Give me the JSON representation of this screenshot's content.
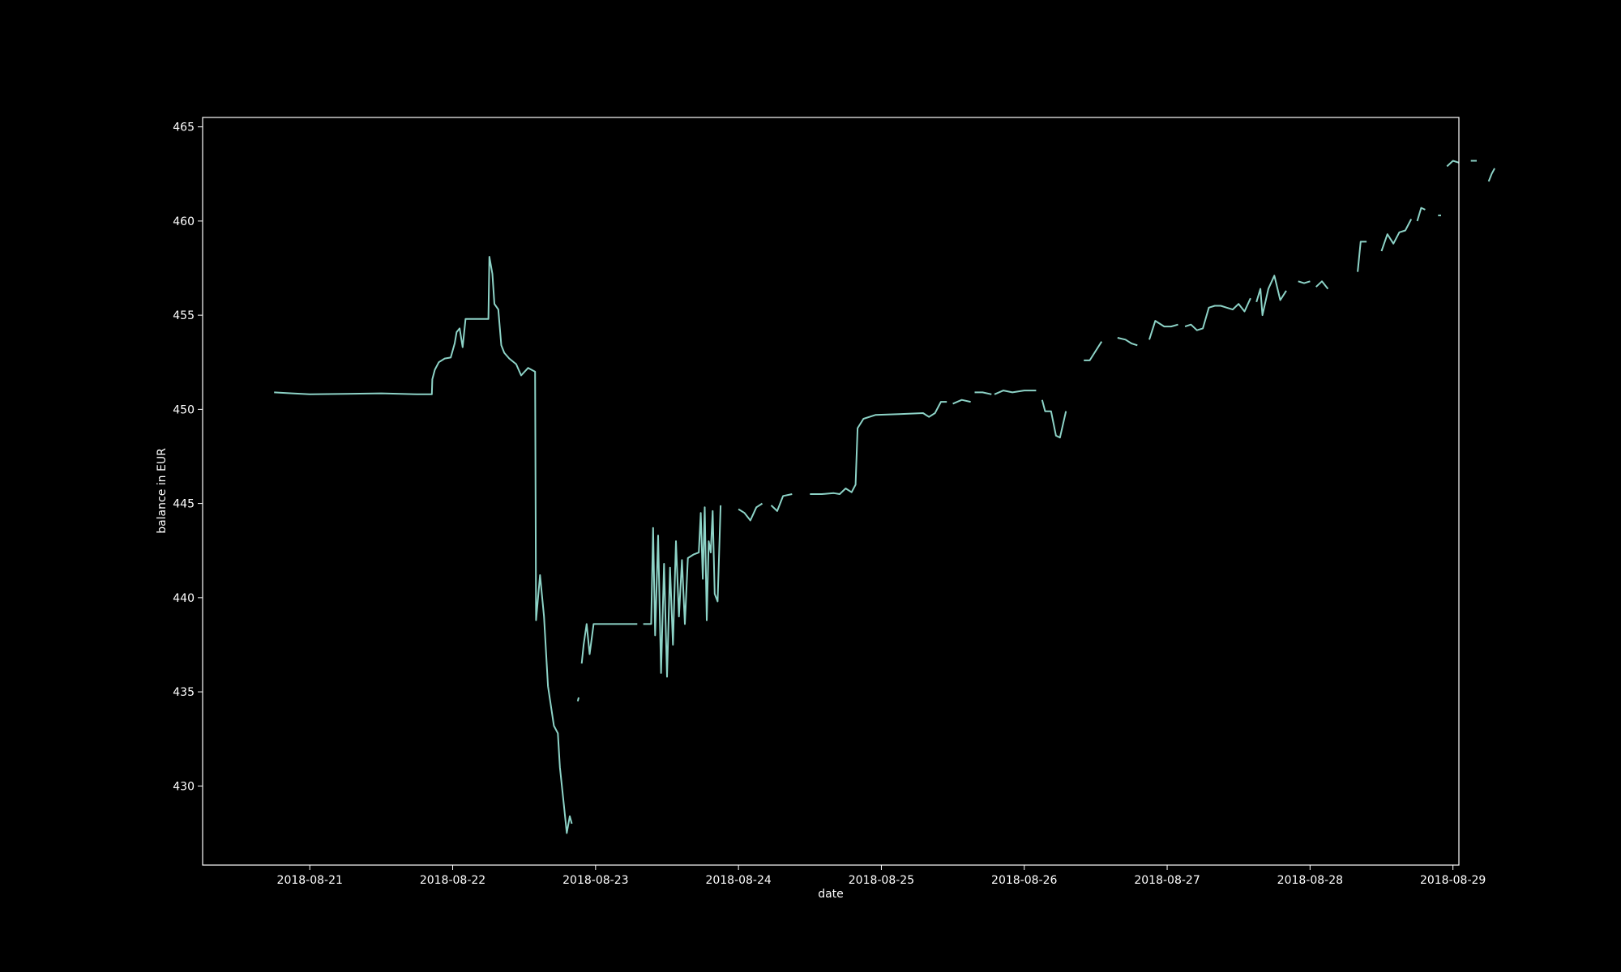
{
  "chart_data": {
    "type": "line",
    "title": "",
    "xlabel": "date",
    "ylabel": "balance in EUR",
    "xlim": [
      "2018-08-20T06:00",
      "2018-08-29T01:00"
    ],
    "ylim": [
      425.8,
      465.5
    ],
    "x_ticks": [
      "2018-08-21",
      "2018-08-22",
      "2018-08-23",
      "2018-08-24",
      "2018-08-25",
      "2018-08-26",
      "2018-08-27",
      "2018-08-28",
      "2018-08-29"
    ],
    "y_ticks": [
      430,
      435,
      440,
      445,
      450,
      455,
      460,
      465
    ],
    "grid": false,
    "legend": false,
    "colors": {
      "background": "#000000",
      "axes": "#ffffff",
      "line": "#8dd3c7"
    },
    "series": [
      {
        "segments": [
          [
            [
              "2018-08-20T18:00",
              450.9
            ],
            [
              "2018-08-20T21:00",
              450.85
            ],
            [
              "2018-08-21T00:00",
              450.8
            ],
            [
              "2018-08-21T06:00",
              450.82
            ],
            [
              "2018-08-21T12:00",
              450.85
            ],
            [
              "2018-08-21T18:00",
              450.8
            ],
            [
              "2018-08-21T20:30",
              450.8
            ],
            [
              "2018-08-21T20:35",
              451.6
            ],
            [
              "2018-08-21T21:00",
              452.1
            ],
            [
              "2018-08-21T21:40",
              452.5
            ],
            [
              "2018-08-21T22:40",
              452.7
            ],
            [
              "2018-08-21T23:40",
              452.75
            ],
            [
              "2018-08-22T00:20",
              453.5
            ],
            [
              "2018-08-22T00:40",
              454.1
            ],
            [
              "2018-08-22T01:10",
              454.3
            ],
            [
              "2018-08-22T01:40",
              453.3
            ],
            [
              "2018-08-22T02:10",
              454.8
            ],
            [
              "2018-08-22T03:30",
              454.8
            ],
            [
              "2018-08-22T05:30",
              454.8
            ],
            [
              "2018-08-22T06:00",
              454.8
            ],
            [
              "2018-08-22T06:10",
              458.1
            ],
            [
              "2018-08-22T06:40",
              457.2
            ],
            [
              "2018-08-22T07:00",
              455.6
            ],
            [
              "2018-08-22T07:40",
              455.3
            ],
            [
              "2018-08-22T08:10",
              453.4
            ],
            [
              "2018-08-22T08:40",
              453.0
            ],
            [
              "2018-08-22T09:30",
              452.7
            ],
            [
              "2018-08-22T10:40",
              452.4
            ],
            [
              "2018-08-22T11:30",
              451.8
            ],
            [
              "2018-08-22T12:40",
              452.2
            ],
            [
              "2018-08-22T13:50",
              452.0
            ],
            [
              "2018-08-22T14:00",
              438.8
            ],
            [
              "2018-08-22T14:40",
              441.2
            ],
            [
              "2018-08-22T15:20",
              439.0
            ],
            [
              "2018-08-22T16:00",
              435.3
            ],
            [
              "2018-08-22T17:00",
              433.2
            ],
            [
              "2018-08-22T17:40",
              432.8
            ],
            [
              "2018-08-22T18:00",
              431.0
            ],
            [
              "2018-08-22T18:40",
              429.0
            ],
            [
              "2018-08-22T19:10",
              427.5
            ],
            [
              "2018-08-22T19:40",
              428.4
            ],
            [
              "2018-08-22T20:00",
              428.0
            ]
          ],
          [
            [
              "2018-08-22T21:00",
              434.5
            ],
            [
              "2018-08-22T21:10",
              434.7
            ]
          ],
          [
            [
              "2018-08-22T21:40",
              436.5
            ],
            [
              "2018-08-22T22:00",
              437.5
            ],
            [
              "2018-08-22T22:30",
              438.6
            ],
            [
              "2018-08-22T23:00",
              437.0
            ],
            [
              "2018-08-22T23:40",
              438.6
            ],
            [
              "2018-08-23T03:00",
              438.6
            ],
            [
              "2018-08-23T06:00",
              438.6
            ],
            [
              "2018-08-23T07:00",
              438.6
            ]
          ],
          [
            [
              "2018-08-23T08:00",
              438.6
            ],
            [
              "2018-08-23T09:20",
              438.6
            ],
            [
              "2018-08-23T09:40",
              443.7
            ],
            [
              "2018-08-23T10:00",
              438.0
            ],
            [
              "2018-08-23T10:30",
              443.3
            ],
            [
              "2018-08-23T11:00",
              436.0
            ],
            [
              "2018-08-23T11:30",
              441.8
            ],
            [
              "2018-08-23T12:00",
              435.8
            ],
            [
              "2018-08-23T12:30",
              441.6
            ],
            [
              "2018-08-23T13:00",
              437.5
            ],
            [
              "2018-08-23T13:30",
              443.0
            ],
            [
              "2018-08-23T14:00",
              439.0
            ],
            [
              "2018-08-23T14:30",
              442.0
            ],
            [
              "2018-08-23T15:00",
              438.6
            ],
            [
              "2018-08-23T15:30",
              442.1
            ],
            [
              "2018-08-23T16:30",
              442.3
            ],
            [
              "2018-08-23T17:20",
              442.4
            ],
            [
              "2018-08-23T17:40",
              444.5
            ],
            [
              "2018-08-23T18:00",
              441.0
            ],
            [
              "2018-08-23T18:20",
              444.8
            ],
            [
              "2018-08-23T18:40",
              438.8
            ],
            [
              "2018-08-23T19:00",
              443.0
            ],
            [
              "2018-08-23T19:20",
              442.4
            ],
            [
              "2018-08-23T19:40",
              444.6
            ],
            [
              "2018-08-23T20:00",
              440.2
            ],
            [
              "2018-08-23T20:30",
              439.8
            ],
            [
              "2018-08-23T21:00",
              444.9
            ]
          ],
          [
            [
              "2018-08-24T00:00",
              444.7
            ],
            [
              "2018-08-24T01:00",
              444.5
            ],
            [
              "2018-08-24T02:00",
              444.1
            ],
            [
              "2018-08-24T03:00",
              444.8
            ],
            [
              "2018-08-24T04:00",
              445.0
            ]
          ],
          [
            [
              "2018-08-24T05:30",
              444.9
            ],
            [
              "2018-08-24T06:30",
              444.6
            ],
            [
              "2018-08-24T07:30",
              445.4
            ],
            [
              "2018-08-24T09:00",
              445.5
            ]
          ],
          [
            [
              "2018-08-24T12:00",
              445.5
            ],
            [
              "2018-08-24T14:00",
              445.5
            ],
            [
              "2018-08-24T16:00",
              445.55
            ],
            [
              "2018-08-24T17:00",
              445.5
            ],
            [
              "2018-08-24T18:00",
              445.8
            ],
            [
              "2018-08-24T19:00",
              445.6
            ],
            [
              "2018-08-24T19:40",
              446.0
            ],
            [
              "2018-08-24T20:00",
              449.0
            ],
            [
              "2018-08-24T21:00",
              449.5
            ],
            [
              "2018-08-24T23:00",
              449.7
            ],
            [
              "2018-08-25T03:00",
              449.75
            ],
            [
              "2018-08-25T07:00",
              449.8
            ],
            [
              "2018-08-25T08:00",
              449.6
            ],
            [
              "2018-08-25T09:00",
              449.8
            ],
            [
              "2018-08-25T10:00",
              450.4
            ],
            [
              "2018-08-25T11:00",
              450.4
            ]
          ],
          [
            [
              "2018-08-25T12:00",
              450.3
            ],
            [
              "2018-08-25T13:30",
              450.5
            ],
            [
              "2018-08-25T15:00",
              450.4
            ]
          ],
          [
            [
              "2018-08-25T15:40",
              450.9
            ],
            [
              "2018-08-25T17:00",
              450.9
            ],
            [
              "2018-08-25T18:30",
              450.8
            ]
          ],
          [
            [
              "2018-08-25T19:00",
              450.8
            ],
            [
              "2018-08-25T20:30",
              451.0
            ],
            [
              "2018-08-25T22:00",
              450.9
            ],
            [
              "2018-08-26T00:00",
              451.0
            ],
            [
              "2018-08-26T01:00",
              451.0
            ],
            [
              "2018-08-26T02:00",
              451.0
            ]
          ],
          [
            [
              "2018-08-26T03:00",
              450.5
            ],
            [
              "2018-08-26T03:30",
              449.9
            ],
            [
              "2018-08-26T04:30",
              449.9
            ],
            [
              "2018-08-26T05:20",
              448.6
            ],
            [
              "2018-08-26T06:00",
              448.5
            ],
            [
              "2018-08-26T07:00",
              449.9
            ]
          ],
          [
            [
              "2018-08-26T10:00",
              452.6
            ],
            [
              "2018-08-26T11:00",
              452.6
            ],
            [
              "2018-08-26T13:00",
              453.6
            ]
          ],
          [
            [
              "2018-08-26T15:40",
              453.8
            ],
            [
              "2018-08-26T17:00",
              453.7
            ],
            [
              "2018-08-26T18:00",
              453.5
            ],
            [
              "2018-08-26T19:00",
              453.4
            ]
          ],
          [
            [
              "2018-08-26T21:00",
              453.7
            ],
            [
              "2018-08-26T22:00",
              454.7
            ],
            [
              "2018-08-26T23:30",
              454.4
            ],
            [
              "2018-08-27T00:40",
              454.4
            ],
            [
              "2018-08-27T01:50",
              454.5
            ]
          ],
          [
            [
              "2018-08-27T03:00",
              454.4
            ],
            [
              "2018-08-27T04:00",
              454.5
            ],
            [
              "2018-08-27T05:00",
              454.2
            ],
            [
              "2018-08-27T06:00",
              454.3
            ],
            [
              "2018-08-27T07:00",
              455.4
            ],
            [
              "2018-08-27T08:00",
              455.5
            ],
            [
              "2018-08-27T09:00",
              455.5
            ],
            [
              "2018-08-27T10:00",
              455.4
            ],
            [
              "2018-08-27T11:00",
              455.3
            ],
            [
              "2018-08-27T12:00",
              455.6
            ],
            [
              "2018-08-27T13:00",
              455.2
            ],
            [
              "2018-08-27T14:00",
              455.9
            ]
          ],
          [
            [
              "2018-08-27T15:00",
              455.7
            ],
            [
              "2018-08-27T15:40",
              456.4
            ],
            [
              "2018-08-27T16:00",
              455.0
            ],
            [
              "2018-08-27T17:00",
              456.4
            ],
            [
              "2018-08-27T18:00",
              457.1
            ],
            [
              "2018-08-27T19:00",
              455.8
            ],
            [
              "2018-08-27T20:00",
              456.3
            ]
          ],
          [
            [
              "2018-08-27T22:00",
              456.8
            ],
            [
              "2018-08-27T23:00",
              456.7
            ],
            [
              "2018-08-28T00:00",
              456.8
            ]
          ],
          [
            [
              "2018-08-28T01:00",
              456.5
            ],
            [
              "2018-08-28T02:00",
              456.8
            ],
            [
              "2018-08-28T03:00",
              456.4
            ]
          ],
          [
            [
              "2018-08-28T08:00",
              457.3
            ],
            [
              "2018-08-28T08:30",
              458.9
            ],
            [
              "2018-08-28T09:30",
              458.9
            ]
          ],
          [
            [
              "2018-08-28T12:00",
              458.4
            ],
            [
              "2018-08-28T13:00",
              459.3
            ],
            [
              "2018-08-28T14:00",
              458.8
            ],
            [
              "2018-08-28T15:00",
              459.4
            ],
            [
              "2018-08-28T16:00",
              459.5
            ],
            [
              "2018-08-28T17:00",
              460.1
            ]
          ],
          [
            [
              "2018-08-28T18:00",
              460.0
            ],
            [
              "2018-08-28T18:40",
              460.7
            ],
            [
              "2018-08-28T19:20",
              460.6
            ]
          ],
          [
            [
              "2018-08-28T21:30",
              460.3
            ],
            [
              "2018-08-28T22:00",
              460.3
            ]
          ],
          [
            [
              "2018-08-28T23:00",
              462.9
            ],
            [
              "2018-08-29T00:00",
              463.2
            ],
            [
              "2018-08-29T01:00",
              463.1
            ]
          ],
          [
            [
              "2018-08-29T03:00",
              463.2
            ],
            [
              "2018-08-29T04:00",
              463.2
            ]
          ],
          [
            [
              "2018-08-29T06:00",
              462.1
            ],
            [
              "2018-08-29T06:30",
              462.5
            ],
            [
              "2018-08-29T07:00",
              462.8
            ]
          ]
        ]
      }
    ]
  }
}
